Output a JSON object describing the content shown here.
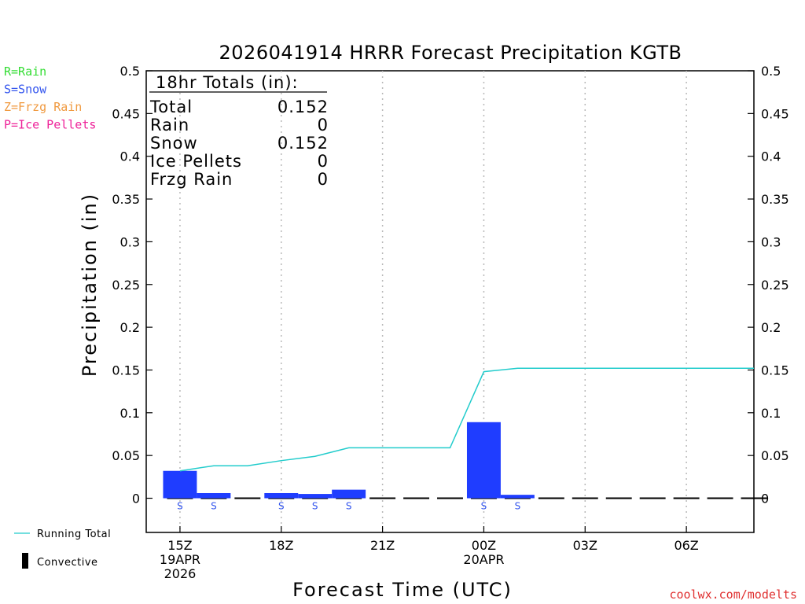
{
  "chart_data": {
    "type": "bar",
    "title": "2026041914 HRRR Forecast Precipitation KGTB",
    "xlabel": "Forecast Time (UTC)",
    "ylabel": "Precipitation (in)",
    "ylim": [
      -0.04,
      0.5
    ],
    "yticks": [
      0,
      0.05,
      0.1,
      0.15,
      0.2,
      0.25,
      0.3,
      0.35,
      0.4,
      0.45,
      0.5
    ],
    "ytick_labels": [
      "0",
      "0.05",
      "0.1",
      "0.15",
      "0.2",
      "0.25",
      "0.3",
      "0.35",
      "0.4",
      "0.45",
      "0.5"
    ],
    "xlim_hours": [
      -1,
      17
    ],
    "xticks": [
      {
        "hour": 0,
        "lines": [
          "15Z",
          "19APR",
          "2026"
        ]
      },
      {
        "hour": 3,
        "lines": [
          "18Z"
        ]
      },
      {
        "hour": 6,
        "lines": [
          "21Z"
        ]
      },
      {
        "hour": 9,
        "lines": [
          "00Z",
          "20APR"
        ]
      },
      {
        "hour": 12,
        "lines": [
          "03Z"
        ]
      },
      {
        "hour": 15,
        "lines": [
          "06Z"
        ]
      }
    ],
    "hourly": [
      {
        "hour": 0,
        "precip": 0.032,
        "type": "S"
      },
      {
        "hour": 1,
        "precip": 0.006,
        "type": "S"
      },
      {
        "hour": 2,
        "precip": 0,
        "type": ""
      },
      {
        "hour": 3,
        "precip": 0.006,
        "type": "S"
      },
      {
        "hour": 4,
        "precip": 0.005,
        "type": "S"
      },
      {
        "hour": 5,
        "precip": 0.01,
        "type": "S"
      },
      {
        "hour": 6,
        "precip": 0,
        "type": ""
      },
      {
        "hour": 7,
        "precip": 0,
        "type": ""
      },
      {
        "hour": 8,
        "precip": 0,
        "type": ""
      },
      {
        "hour": 9,
        "precip": 0.089,
        "type": "S"
      },
      {
        "hour": 10,
        "precip": 0.004,
        "type": "S"
      },
      {
        "hour": 11,
        "precip": 0,
        "type": ""
      },
      {
        "hour": 12,
        "precip": 0,
        "type": ""
      },
      {
        "hour": 13,
        "precip": 0,
        "type": ""
      },
      {
        "hour": 14,
        "precip": 0,
        "type": ""
      },
      {
        "hour": 15,
        "precip": 0,
        "type": ""
      },
      {
        "hour": 16,
        "precip": 0,
        "type": ""
      },
      {
        "hour": 17,
        "precip": 0,
        "type": ""
      }
    ],
    "running_total": [
      {
        "hour": 0,
        "value": 0.032
      },
      {
        "hour": 1,
        "value": 0.038
      },
      {
        "hour": 2,
        "value": 0.038
      },
      {
        "hour": 3,
        "value": 0.044
      },
      {
        "hour": 4,
        "value": 0.049
      },
      {
        "hour": 5,
        "value": 0.059
      },
      {
        "hour": 6,
        "value": 0.059
      },
      {
        "hour": 7,
        "value": 0.059
      },
      {
        "hour": 8,
        "value": 0.059
      },
      {
        "hour": 9,
        "value": 0.148
      },
      {
        "hour": 10,
        "value": 0.152
      },
      {
        "hour": 17,
        "value": 0.152
      }
    ],
    "totals": {
      "heading": "18hr Totals (in):",
      "rows": [
        {
          "label": "Total",
          "value": "0.152"
        },
        {
          "label": "Rain",
          "value": "0"
        },
        {
          "label": "Snow",
          "value": "0.152"
        },
        {
          "label": "Ice Pellets",
          "value": "0"
        },
        {
          "label": "Frzg Rain",
          "value": "0"
        }
      ]
    },
    "ptype_legend": [
      {
        "text": "R=Rain",
        "color": "#33dd33"
      },
      {
        "text": "S=Snow",
        "color": "#3355ee"
      },
      {
        "text": "Z=Frzg Rain",
        "color": "#f09a40"
      },
      {
        "text": "P=Ice Pellets",
        "color": "#ee2299"
      }
    ],
    "series_legend": [
      {
        "text": "Running Total",
        "color": "#22cccc"
      },
      {
        "text": "Convective",
        "color": "#000000"
      }
    ],
    "colors": {
      "bar": "#1f3dff",
      "running_total": "#22cccc",
      "snow_marker": "#3355ee",
      "grid": "#b8b8b8"
    },
    "grid": true,
    "credit": "coolwx.com/modelts",
    "credit_color": "#e03030"
  }
}
